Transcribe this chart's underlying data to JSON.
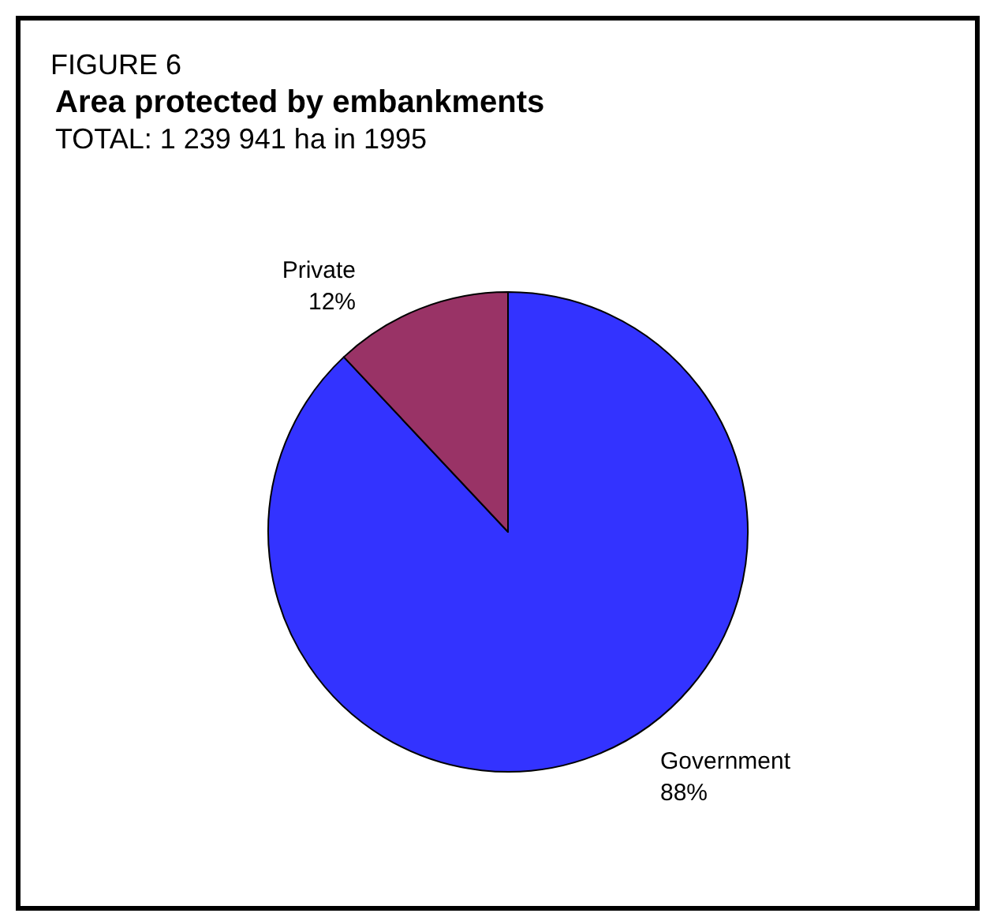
{
  "chart_data": {
    "type": "pie",
    "title": "Area protected by embankments",
    "subtitle": "TOTAL: 1 239 941 ha in 1995",
    "annotations": [
      "FIGURE 6"
    ],
    "categories": [
      "Government",
      "Private"
    ],
    "values": [
      88,
      12
    ],
    "colors": [
      "#3333ff",
      "#993366"
    ],
    "value_labels": [
      "88%",
      "12%"
    ],
    "legend": false
  }
}
